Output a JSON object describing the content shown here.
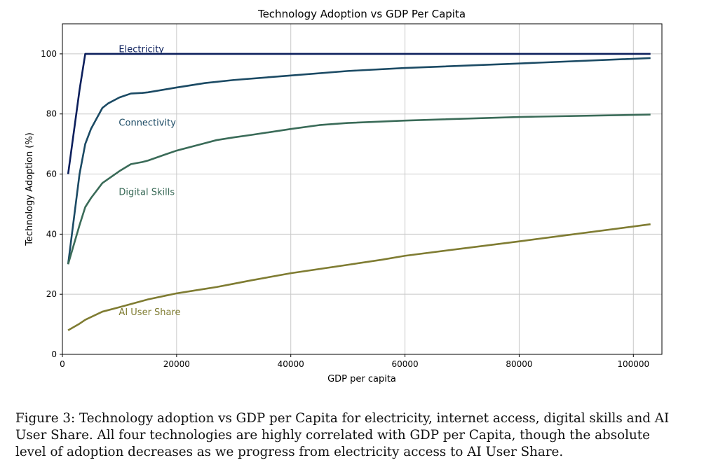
{
  "chart_data": {
    "type": "line",
    "title": "Technology Adoption vs GDP Per Capita",
    "xlabel": "GDP per capita",
    "ylabel": "Technology Adoption (%)",
    "xlim": [
      0,
      105000
    ],
    "ylim": [
      0,
      110
    ],
    "xticks": [
      0,
      20000,
      40000,
      60000,
      80000,
      100000
    ],
    "yticks": [
      0,
      20,
      40,
      60,
      80,
      100
    ],
    "grid": true,
    "legend": "inline labels",
    "series": [
      {
        "name": "Electricity",
        "color": "#0c1f5c",
        "label_at": [
          10000,
          101.5
        ],
        "x": [
          1000,
          3000,
          4000,
          10000,
          20000,
          40000,
          60000,
          80000,
          103000
        ],
        "y": [
          60,
          88,
          100,
          100,
          100,
          100,
          100,
          100,
          100
        ]
      },
      {
        "name": "Connectivity",
        "color": "#1b4a64",
        "label_at": [
          10000,
          77
        ],
        "x": [
          1000,
          3000,
          4000,
          5000,
          7000,
          8000,
          10000,
          12000,
          14000,
          15000,
          20000,
          25000,
          30000,
          40000,
          50000,
          60000,
          80000,
          103000
        ],
        "y": [
          30,
          60,
          70,
          75,
          82,
          83.5,
          85.5,
          86.8,
          87,
          87.2,
          88.8,
          90.3,
          91.3,
          92.8,
          94.3,
          95.3,
          96.8,
          98.6
        ]
      },
      {
        "name": "Digital Skills",
        "color": "#3a6b58",
        "label_at": [
          10000,
          54
        ],
        "x": [
          1000,
          3000,
          4000,
          5000,
          7000,
          10000,
          12000,
          14000,
          15000,
          18000,
          20000,
          25000,
          27000,
          30000,
          33000,
          40000,
          45000,
          50000,
          60000,
          80000,
          103000
        ],
        "y": [
          30,
          43,
          49,
          52,
          57,
          61,
          63.3,
          64,
          64.5,
          66.5,
          67.8,
          70.3,
          71.3,
          72.2,
          73,
          75,
          76.3,
          77,
          77.8,
          79,
          79.8
        ]
      },
      {
        "name": "AI User Share",
        "color": "#7f7c32",
        "label_at": [
          10000,
          14
        ],
        "x": [
          1000,
          3000,
          4000,
          7000,
          10000,
          15000,
          18000,
          20000,
          25000,
          27000,
          30000,
          33000,
          40000,
          50000,
          56000,
          60000,
          80000,
          103000
        ],
        "y": [
          8,
          10.2,
          11.5,
          14.2,
          15.7,
          18.3,
          19.5,
          20.3,
          21.8,
          22.4,
          23.5,
          24.6,
          27,
          29.8,
          31.5,
          32.8,
          37.6,
          43.3
        ]
      }
    ]
  },
  "caption": "Figure 3: Technology adoption vs GDP per Capita for electricity, internet access, digital skills and AI User Share. All four technologies are highly correlated with GDP per Capita, though the absolute level of adoption decreases as we progress from electricity access to AI User Share."
}
